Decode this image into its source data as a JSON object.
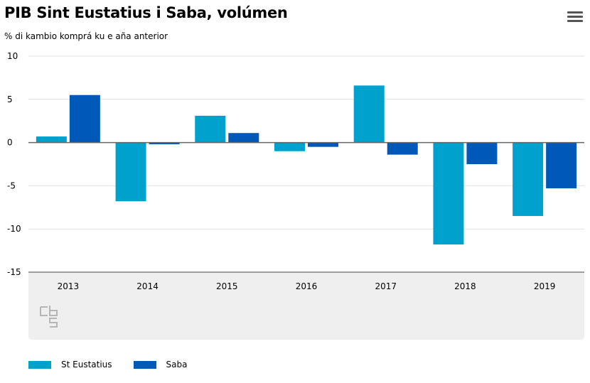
{
  "header": {
    "title": "PIB Sint Eustatius i Saba, volúmen",
    "subtitle": "% di kambio komprá ku e aña anterior",
    "menu_icon": "hamburger-menu-icon"
  },
  "colors": {
    "st_eustatius": "#00a1cd",
    "saba": "#0058b8",
    "grid": "#e1e1e1",
    "zero_line": "#666666",
    "footer_bg": "#efefef"
  },
  "chart_data": {
    "type": "bar",
    "title": "PIB Sint Eustatius i Saba, volúmen",
    "subtitle": "% di kambio komprá ku e aña anterior",
    "categories": [
      "2013",
      "2014",
      "2015",
      "2016",
      "2017",
      "2018",
      "2019"
    ],
    "series": [
      {
        "name": "St Eustatius",
        "values": [
          0.7,
          -6.8,
          3.1,
          -1.0,
          6.6,
          -11.8,
          -8.5
        ]
      },
      {
        "name": "Saba",
        "values": [
          5.5,
          -0.2,
          1.1,
          -0.5,
          -1.4,
          -2.5,
          -5.3
        ]
      }
    ],
    "yticks": [
      "10",
      "5",
      "0",
      "-5",
      "-10",
      "-15"
    ],
    "ylim": [
      -15,
      10
    ],
    "grid": true,
    "legend_position": "bottom-left"
  }
}
